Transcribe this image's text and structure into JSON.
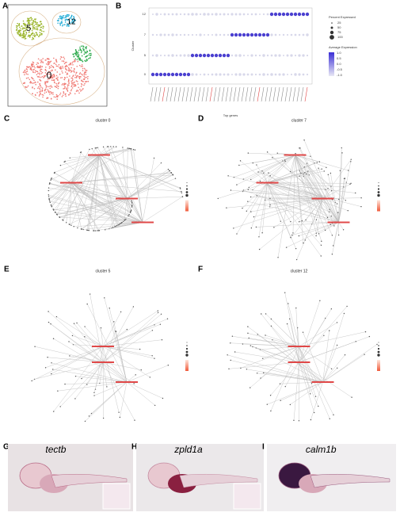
{
  "panelA": {
    "letter": "A",
    "clusters": [
      "5",
      "12",
      "0"
    ]
  },
  "panelB": {
    "letter": "B",
    "ylabel": "Cluster",
    "xlabel": "Top genes",
    "rows": [
      "12",
      "7",
      "5",
      "0"
    ],
    "size_title": "Percent Expressed",
    "sizes": [
      "25",
      "50",
      "75",
      "100"
    ],
    "color_title": "Average Expression",
    "colors": [
      "1.0",
      "0.5",
      "0.0",
      "-0.5",
      "-1.0"
    ]
  },
  "networks": [
    {
      "letter": "C",
      "title": "cluster 0"
    },
    {
      "letter": "D",
      "title": "cluster 7"
    },
    {
      "letter": "E",
      "title": "cluster 5"
    },
    {
      "letter": "F",
      "title": "cluster 12"
    }
  ],
  "images": [
    {
      "letter": "G",
      "gene": "tectb"
    },
    {
      "letter": "H",
      "gene": "zpld1a"
    },
    {
      "letter": "I",
      "gene": "calm1b"
    }
  ]
}
